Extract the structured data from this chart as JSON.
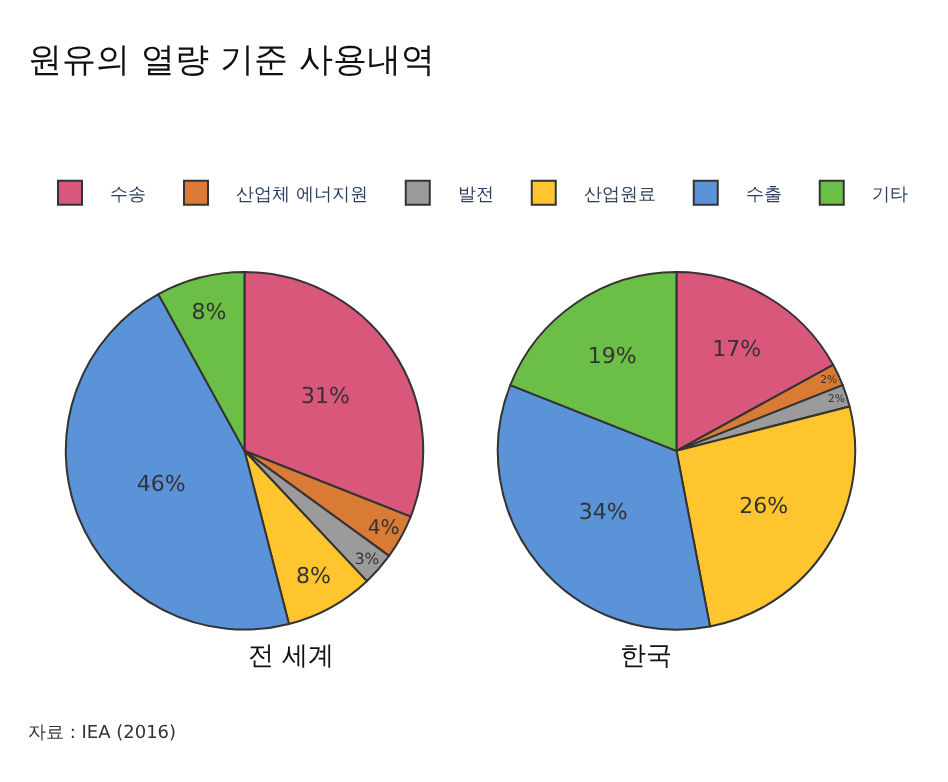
{
  "chart_data": {
    "type": "pie",
    "title": "원유의 열량 기준 사용내역",
    "legend": "top",
    "categories": [
      "수송",
      "산업체 에너지원",
      "발전",
      "산업원료",
      "수출",
      "기타"
    ],
    "colors": [
      "#d9577a",
      "#d97a35",
      "#9b9b9b",
      "#fec52e",
      "#5b93d8",
      "#6cbf46"
    ],
    "series": [
      {
        "name": "전 세계",
        "values": [
          31,
          4,
          3,
          8,
          46,
          8
        ],
        "value_labels": [
          "31%",
          "4%",
          "3%",
          "8%",
          "46%",
          "8%"
        ]
      },
      {
        "name": "한국",
        "values": [
          17,
          2,
          2,
          26,
          34,
          19
        ],
        "value_labels": [
          "17%",
          "2%",
          "2%",
          "26%",
          "34%",
          "19%"
        ]
      }
    ],
    "annotations": [
      "자료 : IEA (2016)"
    ]
  }
}
